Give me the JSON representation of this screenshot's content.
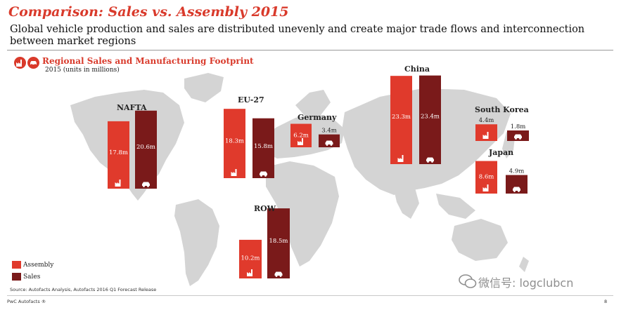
{
  "slide": {
    "title": "Comparison: Sales vs. Assembly 2015",
    "subtitle": "Global vehicle production and sales are distributed unevenly and create major trade flows and interconnection between market regions",
    "footer": "PwC Autofacts ®",
    "page_number": "8",
    "watermark": "微信号: logclubcn"
  },
  "colors": {
    "assembly": "#e03a2c",
    "sales": "#7a1a1a",
    "map": "#d4d4d4",
    "accent": "#d93a2b"
  },
  "chart_data": {
    "type": "bar",
    "title": "Regional Sales and Manufacturing Footprint",
    "subtitle": "2015 (units in millions)",
    "legend": [
      {
        "name": "Assembly",
        "icon": "factory-icon"
      },
      {
        "name": "Sales",
        "icon": "car-icon"
      }
    ],
    "regions": [
      {
        "name": "NAFTA",
        "assembly": 17.8,
        "sales": 20.6,
        "assembly_label": "17.8m",
        "sales_label": "20.6m"
      },
      {
        "name": "EU-27",
        "assembly": 18.3,
        "sales": 15.8,
        "assembly_label": "18.3m",
        "sales_label": "15.8m"
      },
      {
        "name": "Germany",
        "assembly": 6.2,
        "sales": 3.4,
        "assembly_label": "6.2m",
        "sales_label": "3.4m"
      },
      {
        "name": "China",
        "assembly": 23.3,
        "sales": 23.4,
        "assembly_label": "23.3m",
        "sales_label": "23.4m"
      },
      {
        "name": "South Korea",
        "assembly": 4.4,
        "sales": 1.8,
        "assembly_label": "4.4m",
        "sales_label": "1.8m"
      },
      {
        "name": "Japan",
        "assembly": 8.6,
        "sales": 4.9,
        "assembly_label": "8.6m",
        "sales_label": "4.9m"
      },
      {
        "name": "ROW",
        "assembly": 10.2,
        "sales": 18.5,
        "assembly_label": "10.2m",
        "sales_label": "18.5m"
      }
    ],
    "source": "Source: Autofacts Analysis, Autofacts 2016 Q1 Forecast Release"
  }
}
